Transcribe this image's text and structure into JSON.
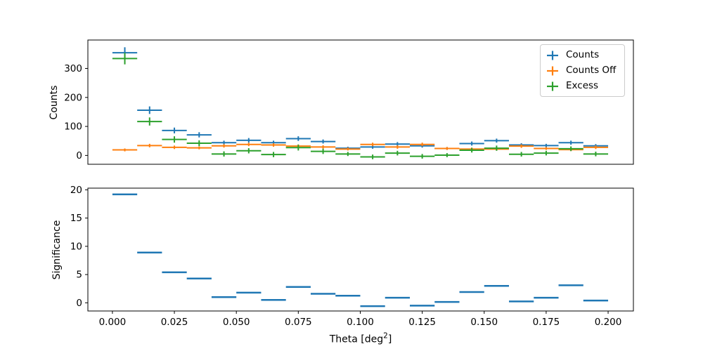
{
  "figure": {
    "background": "#ffffff"
  },
  "chart_data": [
    {
      "type": "errorbar",
      "title": "",
      "ylabel": "Counts",
      "yticks": [
        0,
        100,
        200,
        300
      ],
      "ylim": [
        -30.5,
        398
      ],
      "xlim": [
        -0.0099,
        0.2102
      ],
      "grid": false,
      "legend_position": "upper right",
      "x": [
        0.005,
        0.015,
        0.025,
        0.035,
        0.045,
        0.055,
        0.065,
        0.075,
        0.085,
        0.095,
        0.105,
        0.115,
        0.125,
        0.135,
        0.145,
        0.155,
        0.165,
        0.175,
        0.185,
        0.195
      ],
      "xerr": 0.005,
      "series": [
        {
          "name": "Counts",
          "color": "#1f77b4",
          "values": [
            354,
            156,
            86,
            71,
            44,
            52,
            44,
            58,
            48,
            25,
            29,
            39,
            33,
            24,
            41,
            51,
            36,
            34,
            44,
            33
          ],
          "yerr": [
            19,
            13,
            10,
            9,
            7,
            8,
            7,
            8,
            7,
            5,
            6,
            7,
            6,
            5,
            7,
            7,
            6,
            6,
            7,
            6
          ]
        },
        {
          "name": "Counts Off",
          "color": "#ff7f0e",
          "values": [
            19,
            34,
            28,
            26,
            33,
            38,
            36,
            32,
            29,
            22,
            38,
            29,
            38,
            24,
            22,
            22,
            32,
            24,
            20,
            28
          ],
          "yerr": [
            5,
            6,
            6,
            5,
            6,
            6,
            6,
            6,
            6,
            5,
            6,
            6,
            6,
            5,
            5,
            5,
            6,
            5,
            5,
            6
          ]
        },
        {
          "name": "Excess",
          "color": "#2ca02c",
          "values": [
            334,
            117,
            55,
            42,
            5,
            16,
            3,
            27,
            14,
            5,
            -5,
            8,
            -3,
            1,
            18,
            25,
            4,
            8,
            23,
            5
          ],
          "yerr": [
            20,
            14,
            11,
            10,
            9,
            9,
            9,
            10,
            9,
            7,
            8,
            8,
            8,
            7,
            8,
            9,
            8,
            8,
            8,
            8
          ]
        }
      ]
    },
    {
      "type": "hlines",
      "title": "",
      "ylabel": "Significance",
      "xlabel": {
        "main": "Theta [deg",
        "sup": "2",
        "suffix": "]"
      },
      "yticks": [
        0,
        5,
        10,
        15,
        20
      ],
      "ylim": [
        -1.45,
        20.3
      ],
      "xlim": [
        -0.0099,
        0.2102
      ],
      "grid": false,
      "xticks": [
        0.0,
        0.025,
        0.05,
        0.075,
        0.1,
        0.125,
        0.15,
        0.175,
        0.2
      ],
      "xtick_labels": [
        "0.000",
        "0.025",
        "0.050",
        "0.075",
        "0.100",
        "0.125",
        "0.150",
        "0.175",
        "0.200"
      ],
      "x": [
        0.005,
        0.015,
        0.025,
        0.035,
        0.045,
        0.055,
        0.065,
        0.075,
        0.085,
        0.095,
        0.105,
        0.115,
        0.125,
        0.135,
        0.145,
        0.155,
        0.165,
        0.175,
        0.185,
        0.195
      ],
      "xerr": 0.005,
      "color": "#1f77b4",
      "values": [
        19.2,
        8.9,
        5.4,
        4.3,
        1.0,
        1.8,
        0.5,
        2.8,
        1.6,
        1.25,
        -0.6,
        0.9,
        -0.5,
        0.15,
        1.9,
        3.0,
        0.25,
        0.9,
        3.1,
        0.4
      ]
    }
  ]
}
